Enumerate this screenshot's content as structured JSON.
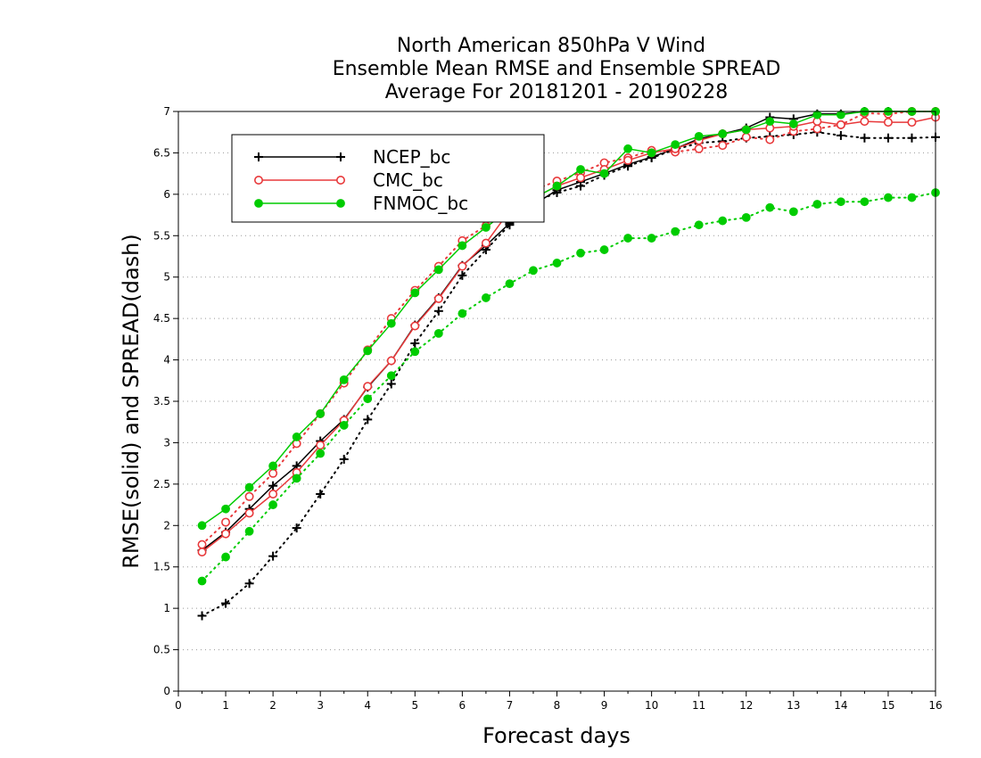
{
  "chart_data": {
    "type": "line",
    "title_lines": [
      "North American 850hPa V Wind",
      "Ensemble Mean RMSE and Ensemble SPREAD",
      "Average For 20181201 - 20190228"
    ],
    "xlabel": "Forecast days",
    "ylabel": "RMSE(solid) and SPREAD(dash)",
    "xlim": [
      0,
      16
    ],
    "ylim": [
      0,
      7
    ],
    "x_ticks": [
      0,
      1,
      2,
      3,
      4,
      5,
      6,
      7,
      8,
      9,
      10,
      11,
      12,
      13,
      14,
      15,
      16
    ],
    "y_ticks": [
      0,
      0.5,
      1,
      1.5,
      2,
      2.5,
      3,
      3.5,
      4,
      4.5,
      5,
      5.5,
      6,
      6.5,
      7
    ],
    "grid": "horizontal dotted",
    "legend_position": "top-left",
    "x": [
      0.5,
      1,
      1.5,
      2,
      2.5,
      3,
      3.5,
      4,
      4.5,
      5,
      5.5,
      6,
      6.5,
      7,
      7.5,
      8,
      8.5,
      9,
      9.5,
      10,
      10.5,
      11,
      11.5,
      12,
      12.5,
      13,
      13.5,
      14,
      14.5,
      15,
      15.5,
      16
    ],
    "series": [
      {
        "name": "NCEP_bc",
        "color": "#000000",
        "marker": "plus",
        "rmse": [
          1.7,
          1.92,
          2.2,
          2.48,
          2.72,
          3.02,
          3.28,
          3.67,
          3.99,
          4.42,
          4.75,
          5.14,
          5.38,
          5.65,
          5.87,
          6.05,
          6.15,
          6.25,
          6.36,
          6.45,
          6.55,
          6.67,
          6.73,
          6.8,
          6.93,
          6.91,
          6.97,
          6.97,
          7.0,
          7.0,
          7.0,
          7.0
        ],
        "spread": [
          0.91,
          1.06,
          1.3,
          1.63,
          1.97,
          2.38,
          2.8,
          3.28,
          3.71,
          4.2,
          4.59,
          5.02,
          5.33,
          5.63,
          5.9,
          6.02,
          6.1,
          6.23,
          6.34,
          6.44,
          6.54,
          6.62,
          6.64,
          6.68,
          6.7,
          6.72,
          6.75,
          6.71,
          6.68,
          6.68,
          6.68,
          6.69
        ]
      },
      {
        "name": "CMC_bc",
        "color": "#e8393b",
        "marker": "circle",
        "rmse": [
          1.68,
          1.9,
          2.15,
          2.38,
          2.64,
          2.97,
          3.27,
          3.68,
          3.99,
          4.41,
          4.74,
          5.13,
          5.41,
          5.8,
          5.95,
          6.1,
          6.2,
          6.3,
          6.41,
          6.5,
          6.55,
          6.65,
          6.73,
          6.78,
          6.8,
          6.82,
          6.88,
          6.84,
          6.88,
          6.87,
          6.87,
          6.93
        ],
        "spread": [
          1.77,
          2.04,
          2.35,
          2.63,
          2.99,
          3.35,
          3.72,
          4.12,
          4.5,
          4.84,
          5.13,
          5.44,
          5.62,
          5.88,
          6.05,
          6.16,
          6.26,
          6.38,
          6.44,
          6.53,
          6.51,
          6.55,
          6.59,
          6.69,
          6.66,
          6.76,
          6.79,
          6.84,
          6.98,
          6.97,
          7.0,
          7.0
        ]
      },
      {
        "name": "FNMOC_bc",
        "color": "#00cc00",
        "marker": "filled-circle",
        "rmse": [
          2.0,
          2.2,
          2.46,
          2.72,
          3.07,
          3.35,
          3.76,
          4.11,
          4.44,
          4.81,
          5.09,
          5.38,
          5.6,
          5.82,
          5.95,
          6.1,
          6.3,
          6.25,
          6.55,
          6.5,
          6.6,
          6.7,
          6.73,
          6.78,
          6.88,
          6.85,
          6.96,
          6.96,
          7.0,
          7.0,
          7.0,
          7.0
        ],
        "spread": [
          1.33,
          1.62,
          1.93,
          2.25,
          2.57,
          2.87,
          3.21,
          3.53,
          3.81,
          4.1,
          4.32,
          4.56,
          4.75,
          4.92,
          5.08,
          5.17,
          5.29,
          5.33,
          5.47,
          5.47,
          5.55,
          5.63,
          5.68,
          5.72,
          5.84,
          5.79,
          5.88,
          5.91,
          5.91,
          5.96,
          5.96,
          6.02
        ]
      }
    ]
  }
}
